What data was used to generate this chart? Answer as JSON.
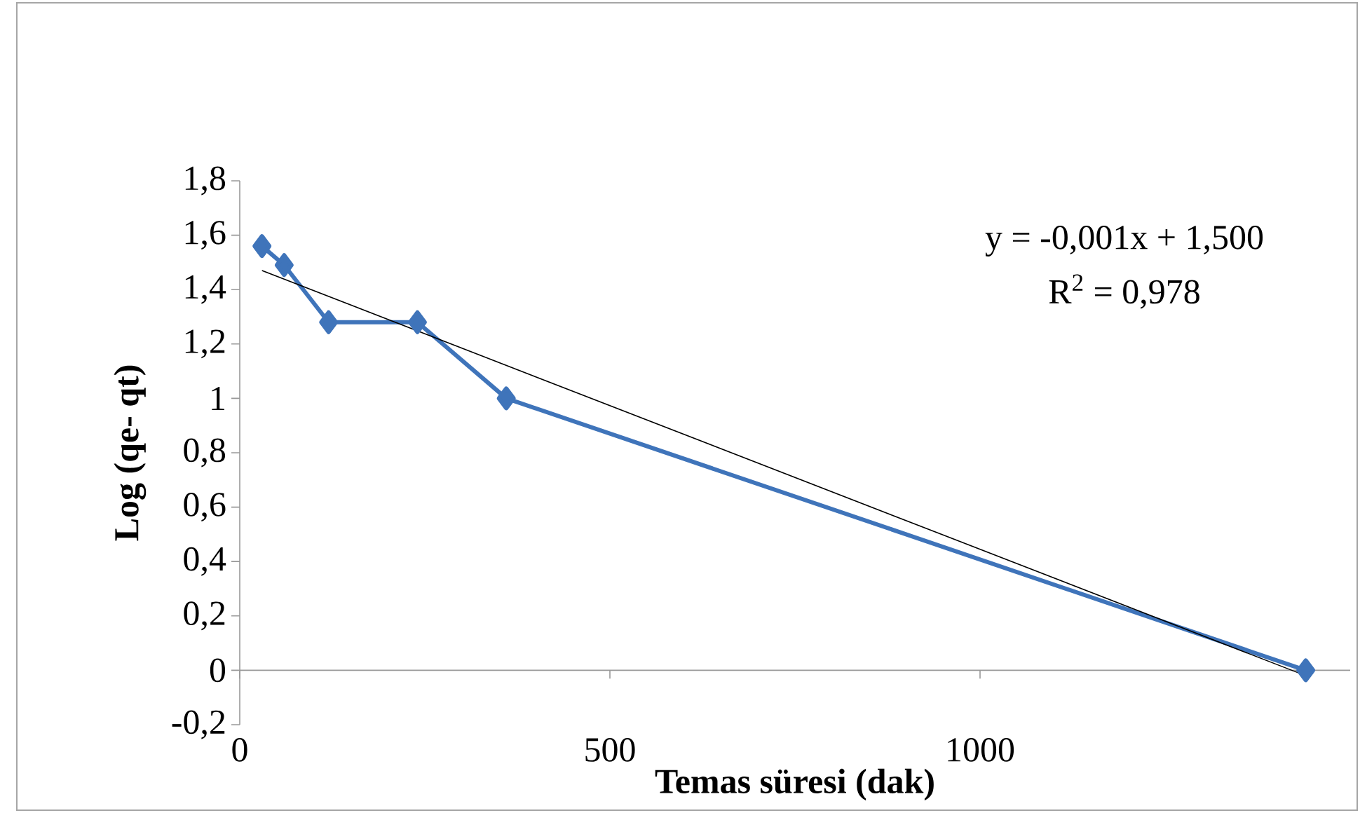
{
  "chart_data": {
    "type": "line",
    "xlabel": "Temas süresi (dak)",
    "ylabel": "Log (qe- qt)",
    "annotations": [
      "y = -0,001x + 1,500",
      "R$^{2}$ = 0,978"
    ],
    "xlim": [
      0,
      1500
    ],
    "ylim": [
      -0.2,
      1.8
    ],
    "xticks": [
      0,
      500,
      1000
    ],
    "yticks": [
      {
        "value": -0.2,
        "label": "-0,2"
      },
      0,
      {
        "value": 0.2,
        "label": "0,2"
      },
      {
        "value": 0.4,
        "label": "0,4"
      },
      {
        "value": 0.6,
        "label": "0,6"
      },
      {
        "value": 0.8,
        "label": "0,8"
      },
      1,
      {
        "value": 1.2,
        "label": "1,2"
      },
      {
        "value": 1.4,
        "label": "1,4"
      },
      {
        "value": 1.6,
        "label": "1,6"
      },
      {
        "value": 1.8,
        "label": "1,8"
      }
    ],
    "marker": "diamond",
    "line_style": "solid",
    "series": [
      {
        "color": "#3f74ba",
        "x": [
          30,
          60,
          120,
          240,
          360,
          1440
        ],
        "values": [
          1.56,
          1.49,
          1.28,
          1.28,
          1.0,
          0
        ]
      },
      {
        "type": "line",
        "color": "#000000",
        "marker": "none",
        "x": [
          30,
          1440
        ],
        "values": [
          1.47,
          -0.02
        ]
      }
    ]
  }
}
